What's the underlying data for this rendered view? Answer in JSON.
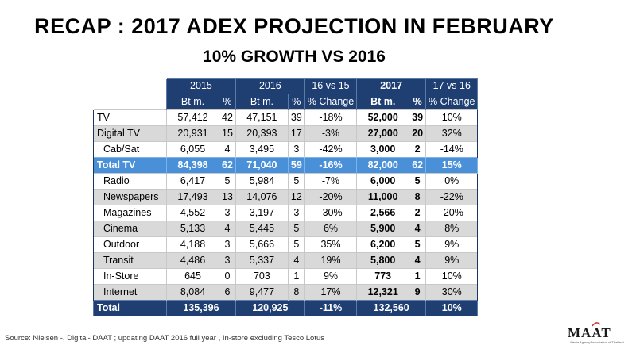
{
  "title": "RECAP : 2017 ADEX PROJECTION IN FEBRUARY",
  "subtitle": "10% GROWTH VS 2016",
  "table": {
    "year_headers": [
      "2015",
      "2016",
      "16 vs 15",
      "2017",
      "17 vs 16"
    ],
    "sub_headers": [
      "Bt m.",
      "%",
      "Bt m.",
      "%",
      "% Change",
      "Bt m.",
      "%",
      "% Change"
    ],
    "rows": [
      {
        "label": "TV",
        "v2015": "57,412",
        "p2015": "42",
        "v2016": "47,151",
        "p2016": "39",
        "chg1615": "-18%",
        "v2017": "52,000",
        "p2017": "39",
        "chg1716": "10%"
      },
      {
        "label": "Digital TV",
        "v2015": "20,931",
        "p2015": "15",
        "v2016": "20,393",
        "p2016": "17",
        "chg1615": "-3%",
        "v2017": "27,000",
        "p2017": "20",
        "chg1716": "32%"
      },
      {
        "label": "Cab/Sat",
        "v2015": "6,055",
        "p2015": "4",
        "v2016": "3,495",
        "p2016": "3",
        "chg1615": "-42%",
        "v2017": "3,000",
        "p2017": "2",
        "chg1716": "-14%"
      },
      {
        "label": "Total TV",
        "v2015": "84,398",
        "p2015": "62",
        "v2016": "71,040",
        "p2016": "59",
        "chg1615": "-16%",
        "v2017": "82,000",
        "p2017": "62",
        "chg1716": "15%"
      },
      {
        "label": "Radio",
        "v2015": "6,417",
        "p2015": "5",
        "v2016": "5,984",
        "p2016": "5",
        "chg1615": "-7%",
        "v2017": "6,000",
        "p2017": "5",
        "chg1716": "0%"
      },
      {
        "label": "Newspapers",
        "v2015": "17,493",
        "p2015": "13",
        "v2016": "14,076",
        "p2016": "12",
        "chg1615": "-20%",
        "v2017": "11,000",
        "p2017": "8",
        "chg1716": "-22%"
      },
      {
        "label": "Magazines",
        "v2015": "4,552",
        "p2015": "3",
        "v2016": "3,197",
        "p2016": "3",
        "chg1615": "-30%",
        "v2017": "2,566",
        "p2017": "2",
        "chg1716": "-20%"
      },
      {
        "label": "Cinema",
        "v2015": "5,133",
        "p2015": "4",
        "v2016": "5,445",
        "p2016": "5",
        "chg1615": "6%",
        "v2017": "5,900",
        "p2017": "4",
        "chg1716": "8%"
      },
      {
        "label": "Outdoor",
        "v2015": "4,188",
        "p2015": "3",
        "v2016": "5,666",
        "p2016": "5",
        "chg1615": "35%",
        "v2017": "6,200",
        "p2017": "5",
        "chg1716": "9%"
      },
      {
        "label": "Transit",
        "v2015": "4,486",
        "p2015": "3",
        "v2016": "5,337",
        "p2016": "4",
        "chg1615": "19%",
        "v2017": "5,800",
        "p2017": "4",
        "chg1716": "9%"
      },
      {
        "label": "In-Store",
        "v2015": "645",
        "p2015": "0",
        "v2016": "703",
        "p2016": "1",
        "chg1615": "9%",
        "v2017": "773",
        "p2017": "1",
        "chg1716": "10%"
      },
      {
        "label": "Internet",
        "v2015": "8,084",
        "p2015": "6",
        "v2016": "9,477",
        "p2016": "8",
        "chg1615": "17%",
        "v2017": "12,321",
        "p2017": "9",
        "chg1716": "30%"
      }
    ],
    "total": {
      "label": "Total",
      "v2015": "135,396",
      "v2016": "120,925",
      "chg1615": "-11%",
      "v2017": "132,560",
      "chg1716": "10%"
    }
  },
  "source": "Source: Nielsen -, Digital- DAAT ;  updating DAAT 2016 full year , In-store excluding Tesco Lotus",
  "logo": {
    "text": "MAAT",
    "tagline": "Media Agency Association of Thailand"
  },
  "colors": {
    "header": "#1f3f73",
    "highlight": "#4a90d9",
    "stripe": "#d9d9d9"
  }
}
